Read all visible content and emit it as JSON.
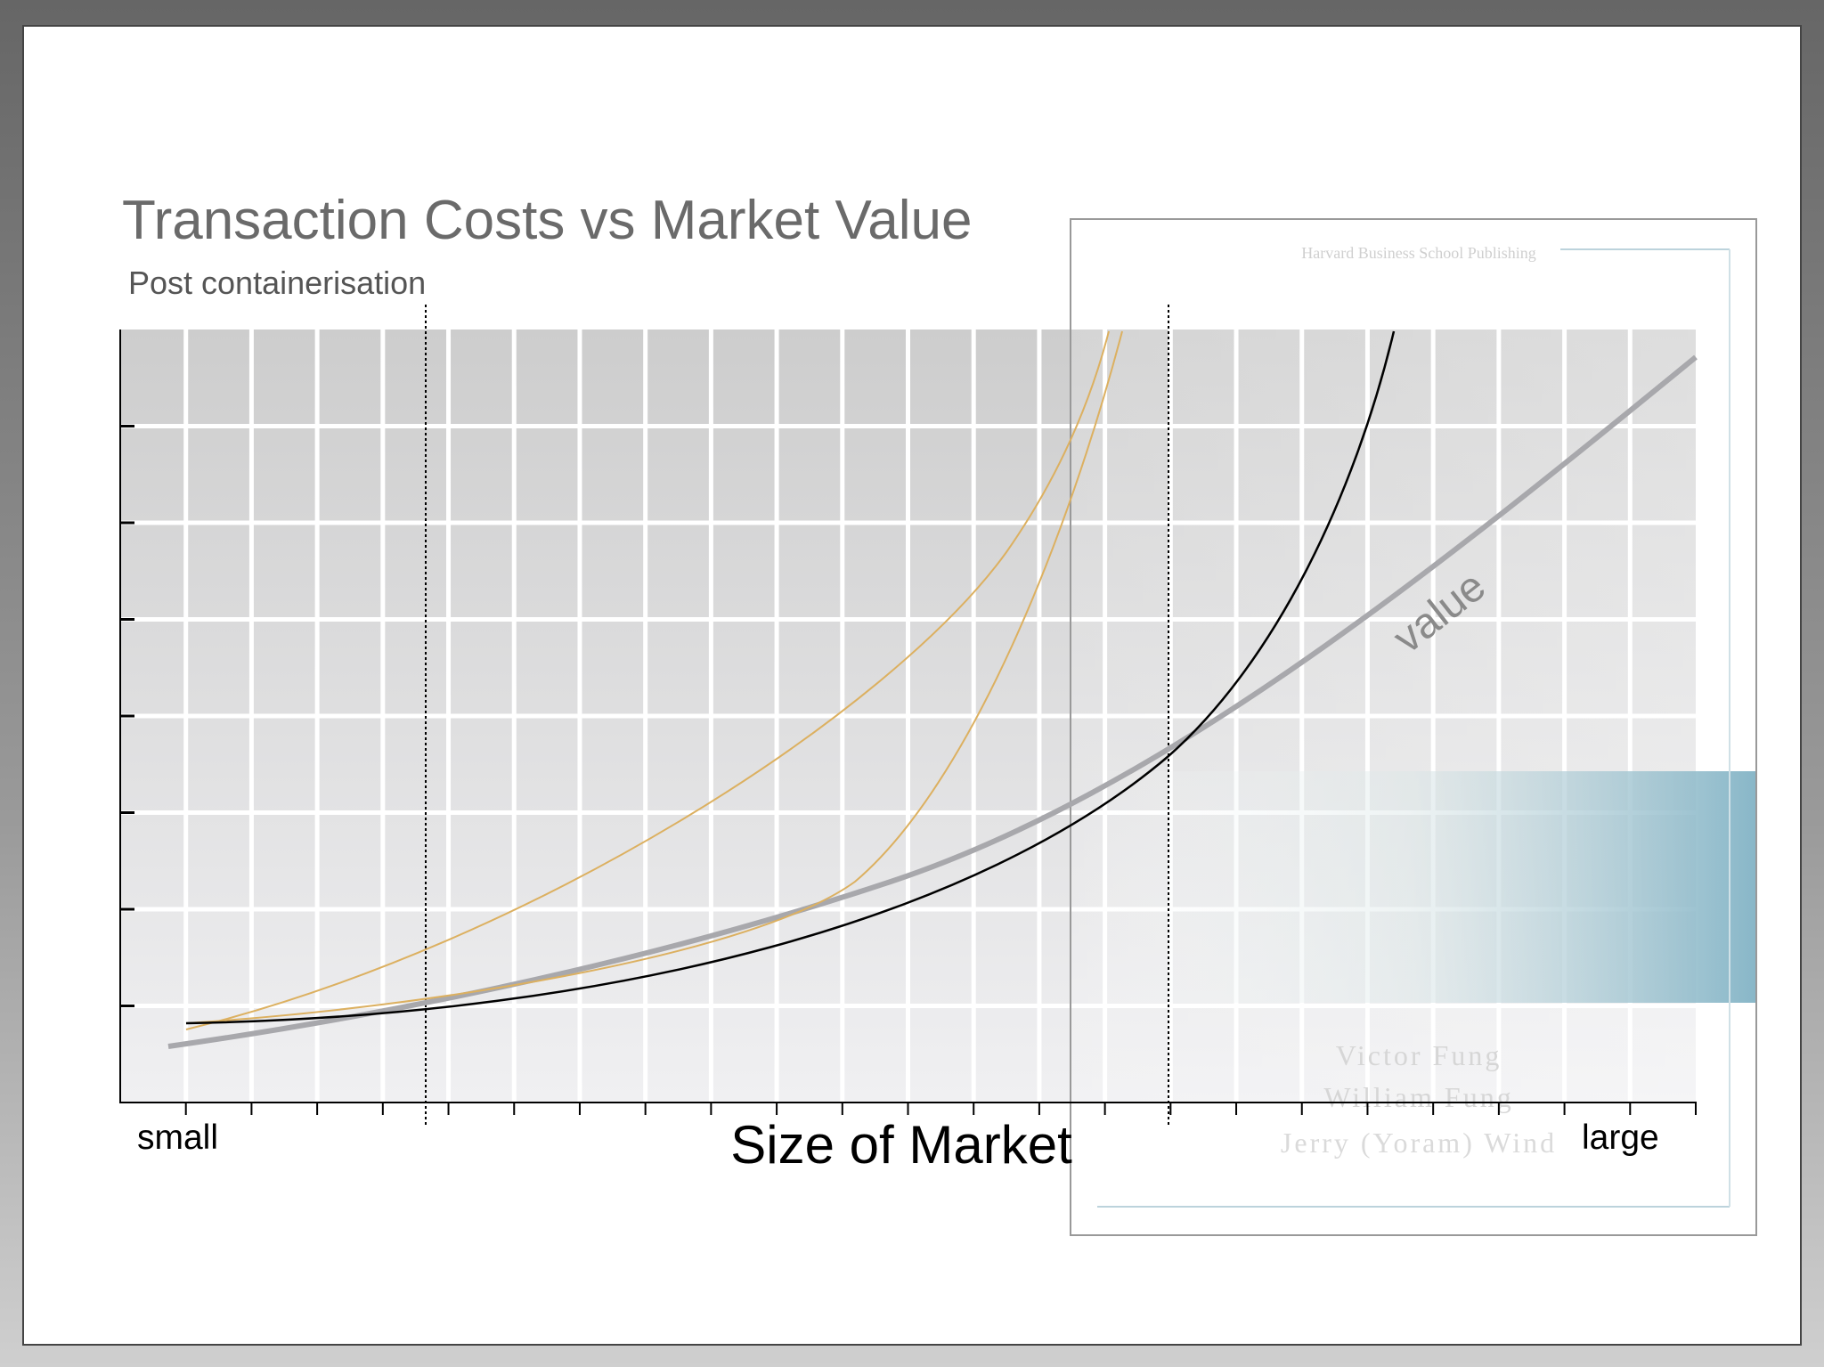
{
  "slide": {
    "title": "Transaction Costs vs Market Value",
    "subtitle": "Post containerisation",
    "x_axis_label": "Size of Market",
    "x_min_label": "small",
    "x_max_label": "large",
    "curve_label": "value",
    "background_cover": {
      "publisher": "Harvard Business School Publishing",
      "authors": [
        "Victor Fung",
        "William Fung",
        "Jerry (Yoram) Wind"
      ]
    }
  }
}
